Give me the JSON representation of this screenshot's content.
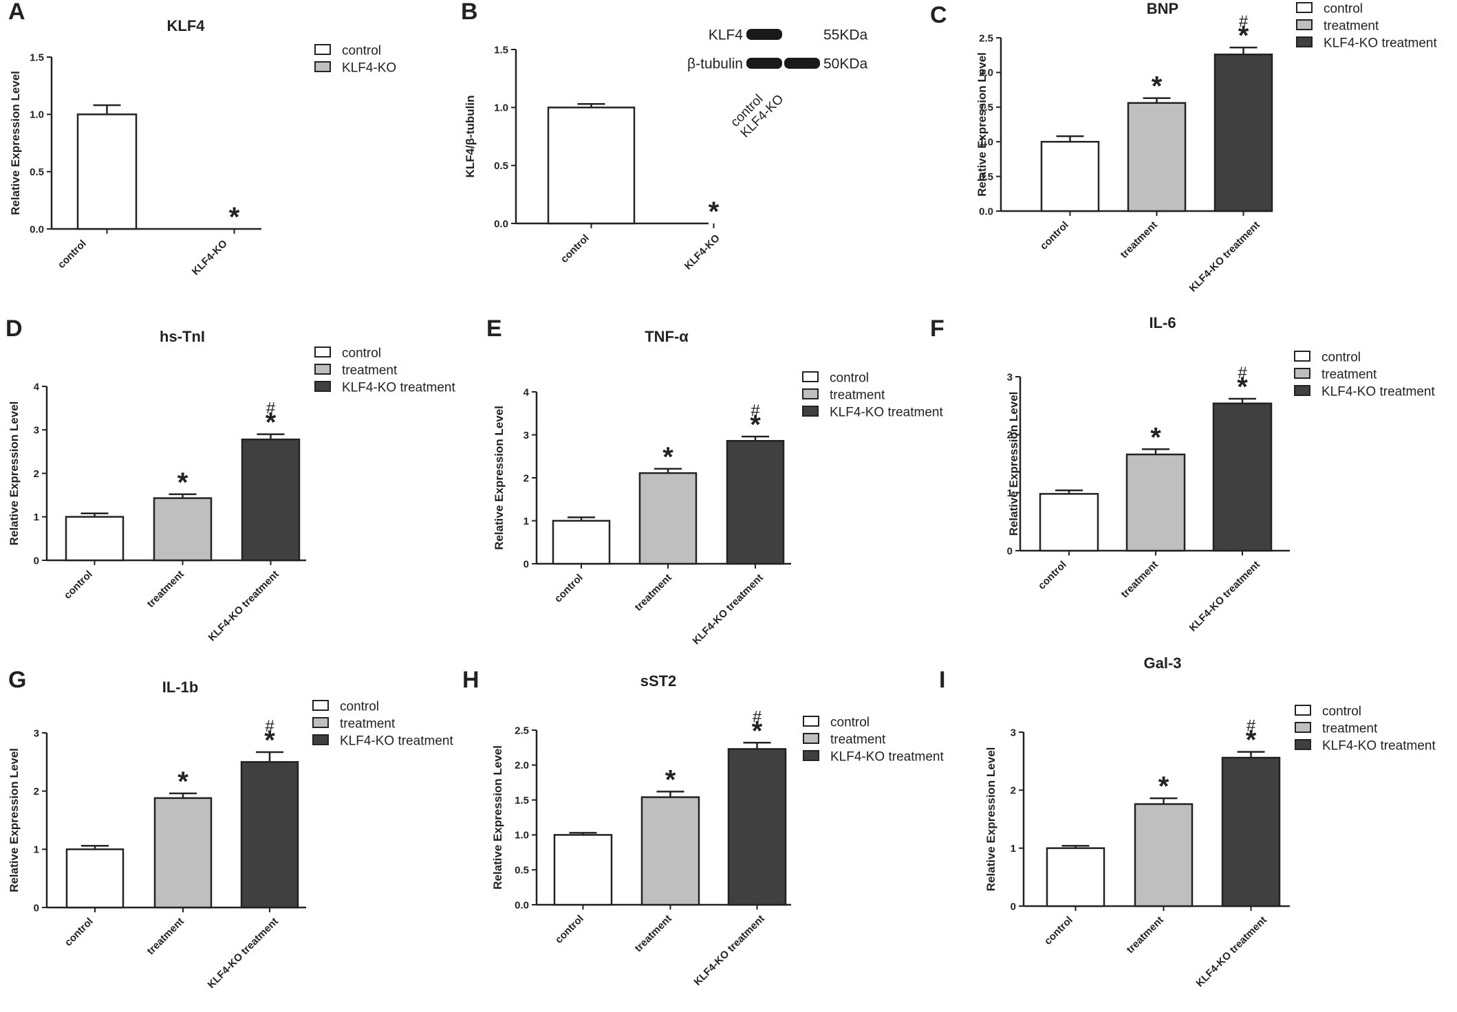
{
  "figure": {
    "colors": {
      "control": "#ffffff",
      "treatment": "#bfbfbf",
      "ko_treatment": "#404040",
      "stroke": "#222222"
    }
  },
  "chart_data": [
    {
      "panel": "A",
      "type": "bar",
      "title": "KLF4",
      "ylabel": "Relative Expression Level",
      "categories": [
        "control",
        "KLF4-KO"
      ],
      "legend": [
        "control",
        "KLF4-KO"
      ],
      "values": [
        1.0,
        0.0
      ],
      "errors": [
        0.08,
        0.0
      ],
      "sig_star": [
        false,
        true
      ],
      "sig_hash": [
        false,
        false
      ],
      "ylim": [
        0,
        1.5
      ],
      "yticks": [
        "0.0",
        "0.5",
        "1.0",
        "1.5"
      ]
    },
    {
      "panel": "B",
      "type": "bar",
      "title": "",
      "ylabel": "KLF4/β-tubulin",
      "categories": [
        "control",
        "KLF4-KO"
      ],
      "legend": [],
      "values": [
        1.0,
        0.0
      ],
      "errors": [
        0.03,
        0.0
      ],
      "sig_star": [
        false,
        true
      ],
      "sig_hash": [
        false,
        false
      ],
      "ylim": [
        0,
        1.5
      ],
      "yticks": [
        "0.0",
        "0.5",
        "1.0",
        "1.5"
      ],
      "blot": {
        "bands": [
          "KLF4",
          "β-tubulin"
        ],
        "sizes": [
          "55KDa",
          "50KDa"
        ],
        "lanes": [
          "control",
          "KLF4-KO"
        ]
      }
    },
    {
      "panel": "C",
      "type": "bar",
      "title": "BNP",
      "ylabel": "Relative Expression Level",
      "categories": [
        "control",
        "treatment",
        "KLF4-KO treatment"
      ],
      "legend": [
        "control",
        "treatment",
        "KLF4-KO treatment"
      ],
      "values": [
        1.0,
        1.56,
        2.26
      ],
      "errors": [
        0.08,
        0.07,
        0.1
      ],
      "sig_star": [
        false,
        true,
        true
      ],
      "sig_hash": [
        false,
        false,
        true
      ],
      "ylim": [
        0,
        2.5
      ],
      "yticks": [
        "0.0",
        "0.5",
        "1.0",
        "1.5",
        "2.0",
        "2.5"
      ]
    },
    {
      "panel": "D",
      "type": "bar",
      "title": "hs-TnI",
      "ylabel": "Relative Expression Level",
      "categories": [
        "control",
        "treatment",
        "KLF4-KO treatment"
      ],
      "legend": [
        "control",
        "treatment",
        "KLF4-KO treatment"
      ],
      "values": [
        1.0,
        1.43,
        2.78
      ],
      "errors": [
        0.08,
        0.09,
        0.12
      ],
      "sig_star": [
        false,
        true,
        true
      ],
      "sig_hash": [
        false,
        false,
        true
      ],
      "ylim": [
        0,
        4
      ],
      "yticks": [
        "0",
        "1",
        "2",
        "3",
        "4"
      ]
    },
    {
      "panel": "E",
      "type": "bar",
      "title": "TNF-α",
      "ylabel": "Relative Expression Level",
      "categories": [
        "control",
        "treatment",
        "KLF4-KO treatment"
      ],
      "legend": [
        "control",
        "treatment",
        "KLF4-KO treatment"
      ],
      "values": [
        1.0,
        2.11,
        2.86
      ],
      "errors": [
        0.08,
        0.1,
        0.1
      ],
      "sig_star": [
        false,
        true,
        true
      ],
      "sig_hash": [
        false,
        false,
        true
      ],
      "ylim": [
        0,
        4
      ],
      "yticks": [
        "0",
        "1",
        "2",
        "3",
        "4"
      ]
    },
    {
      "panel": "F",
      "type": "bar",
      "title": "IL-6",
      "ylabel": "Relative Expression Level",
      "categories": [
        "control",
        "treatment",
        "KLF4-KO treatment"
      ],
      "legend": [
        "control",
        "treatment",
        "KLF4-KO treatment"
      ],
      "values": [
        0.98,
        1.66,
        2.54
      ],
      "errors": [
        0.06,
        0.09,
        0.08
      ],
      "sig_star": [
        false,
        true,
        true
      ],
      "sig_hash": [
        false,
        false,
        true
      ],
      "ylim": [
        0,
        3
      ],
      "yticks": [
        "0",
        "1",
        "2",
        "3"
      ]
    },
    {
      "panel": "G",
      "type": "bar",
      "title": "IL-1b",
      "ylabel": "Relative Expression Level",
      "categories": [
        "control",
        "treatment",
        "KLF4-KO treatment"
      ],
      "legend": [
        "control",
        "treatment",
        "KLF4-KO treatment"
      ],
      "values": [
        1.0,
        1.88,
        2.5
      ],
      "errors": [
        0.06,
        0.08,
        0.17
      ],
      "sig_star": [
        false,
        true,
        true
      ],
      "sig_hash": [
        false,
        false,
        true
      ],
      "ylim": [
        0,
        3
      ],
      "yticks": [
        "0",
        "1",
        "2",
        "3"
      ]
    },
    {
      "panel": "H",
      "type": "bar",
      "title": "sST2",
      "ylabel": "Relative Expression Level",
      "categories": [
        "control",
        "treatment",
        "KLF4-KO treatment"
      ],
      "legend": [
        "control",
        "treatment",
        "KLF4-KO treatment"
      ],
      "values": [
        1.0,
        1.54,
        2.23
      ],
      "errors": [
        0.03,
        0.08,
        0.09
      ],
      "sig_star": [
        false,
        true,
        true
      ],
      "sig_hash": [
        false,
        false,
        true
      ],
      "ylim": [
        0,
        2.5
      ],
      "yticks": [
        "0.0",
        "0.5",
        "1.0",
        "1.5",
        "2.0",
        "2.5"
      ]
    },
    {
      "panel": "I",
      "type": "bar",
      "title": "Gal-3",
      "ylabel": "Relative Expression Level",
      "categories": [
        "control",
        "treatment",
        "KLF4-KO treatment"
      ],
      "legend": [
        "control",
        "treatment",
        "KLF4-KO treatment"
      ],
      "values": [
        1.0,
        1.76,
        2.56
      ],
      "errors": [
        0.04,
        0.1,
        0.1
      ],
      "sig_star": [
        false,
        true,
        true
      ],
      "sig_hash": [
        false,
        false,
        true
      ],
      "ylim": [
        0,
        3
      ],
      "yticks": [
        "0",
        "1",
        "2",
        "3"
      ]
    }
  ]
}
